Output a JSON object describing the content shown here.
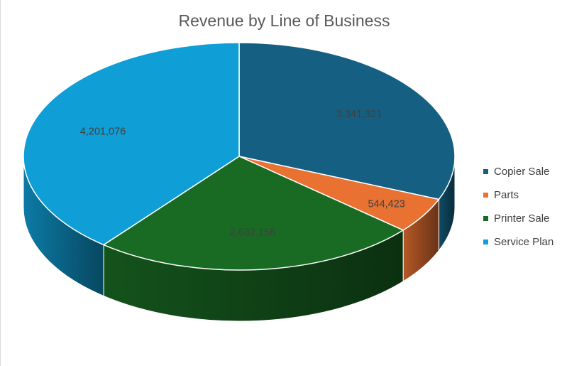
{
  "chart_data": {
    "type": "pie",
    "title": "Revenue by Line of Business",
    "legend_position": "right",
    "slices": [
      {
        "name": "Copier Sale",
        "value": 3341321,
        "label": "3,341,321",
        "color": "#156082"
      },
      {
        "name": "Parts",
        "value": 544423,
        "label": "544,423",
        "color": "#E97132"
      },
      {
        "name": "Printer Sale",
        "value": 2632156,
        "label": "2,632,156",
        "color": "#196B24"
      },
      {
        "name": "Service Plan",
        "value": 4201076,
        "label": "4,201,076",
        "color": "#0F9ED5"
      }
    ]
  }
}
